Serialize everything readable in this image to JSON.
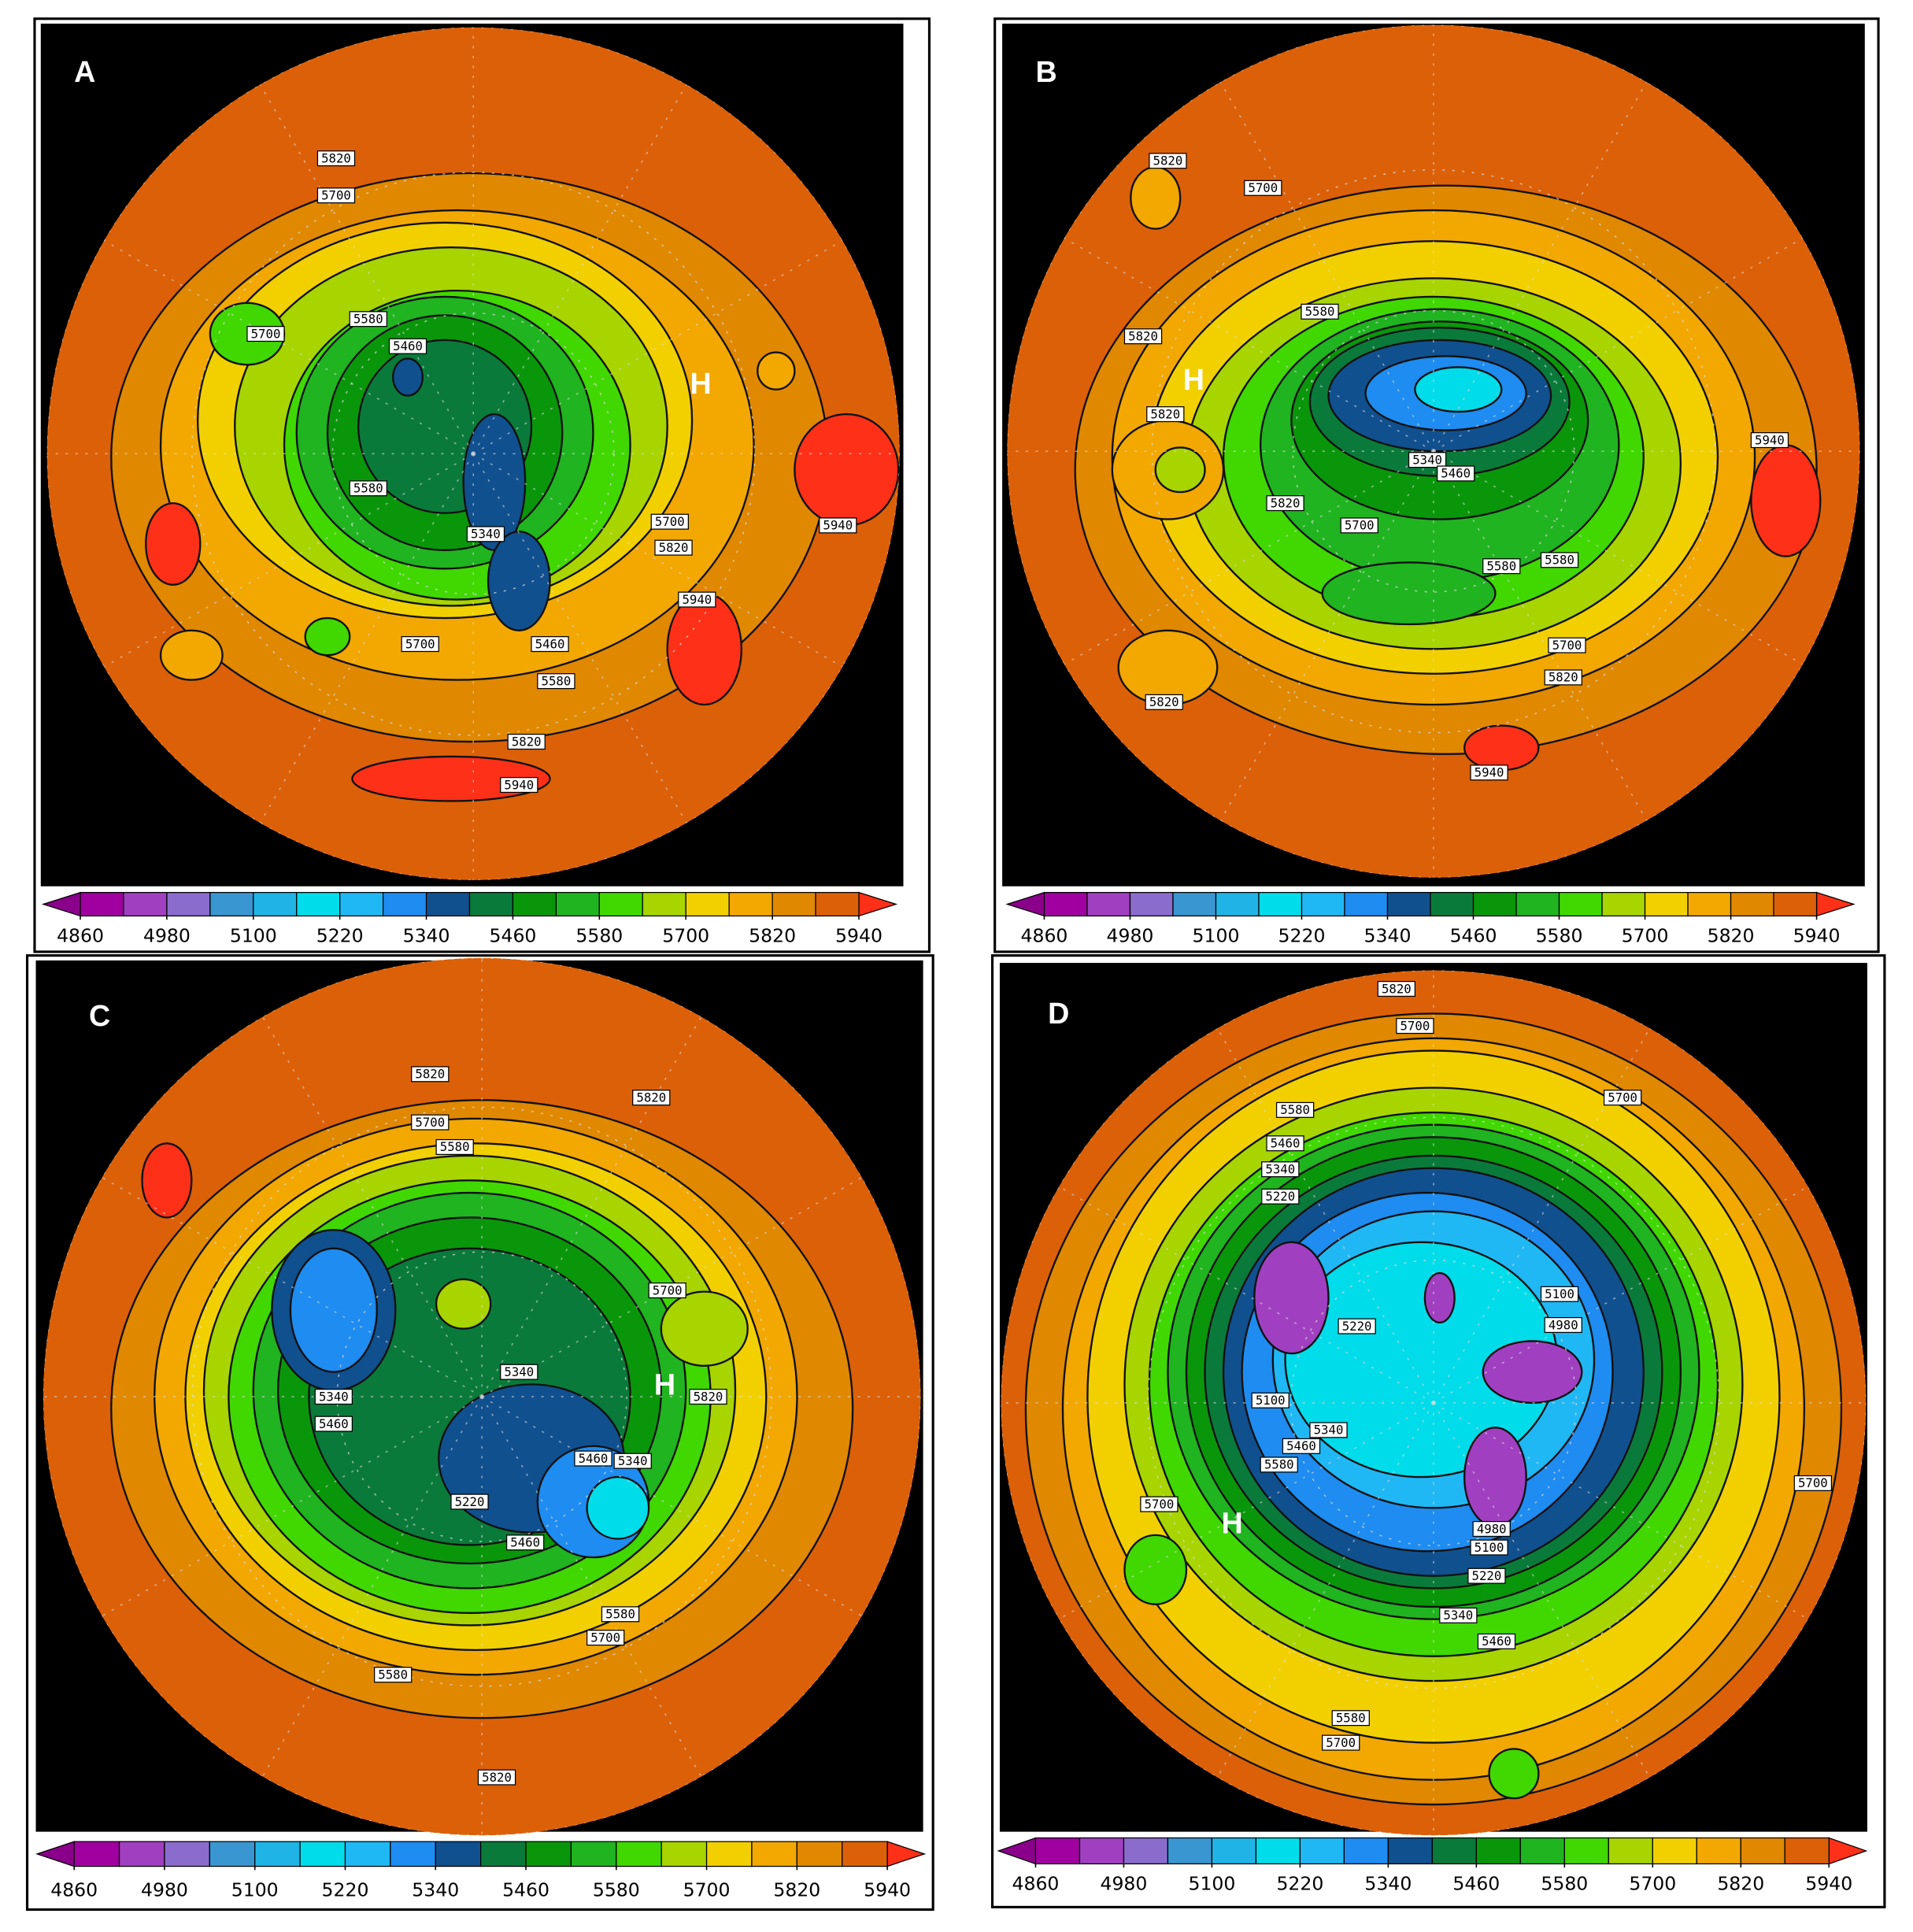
{
  "panels": [
    {
      "label": "A",
      "high": "H",
      "contour_labels": [
        5820,
        5700,
        5700,
        5580,
        5460,
        5580,
        5340,
        5700,
        5820,
        5940,
        5940,
        5700,
        5460,
        5580,
        5820,
        5940
      ]
    },
    {
      "label": "B",
      "high": "H",
      "contour_labels": [
        5820,
        5700,
        5820,
        5820,
        5580,
        5340,
        5460,
        5820,
        5700,
        5580,
        5580,
        5940,
        5700,
        5820,
        5820,
        5940
      ]
    },
    {
      "label": "C",
      "high": "H",
      "contour_labels": [
        5820,
        5820,
        5700,
        5580,
        5700,
        5820,
        5340,
        5340,
        5460,
        5460,
        5340,
        5220,
        5460,
        5580,
        5700,
        5580,
        5820
      ]
    },
    {
      "label": "D",
      "high": "H",
      "contour_labels": [
        5820,
        5700,
        5700,
        5580,
        5460,
        5340,
        5220,
        5100,
        5220,
        4980,
        5100,
        5340,
        5460,
        5580,
        5700,
        5700,
        4980,
        5100,
        5220,
        5340,
        5460,
        5580,
        5700
      ]
    }
  ],
  "colorbar": {
    "ticks": [
      4860,
      4980,
      5100,
      5220,
      5340,
      5460,
      5580,
      5700,
      5820,
      5940
    ],
    "colors": [
      "#a000a0",
      "#a040c0",
      "#8a6ccc",
      "#3a96d0",
      "#20b4e6",
      "#00dcea",
      "#20b8f4",
      "#1e8cf0",
      "#10508e",
      "#0a7a3a",
      "#0a960a",
      "#20b420",
      "#40d800",
      "#a8d400",
      "#f2d000",
      "#f2a800",
      "#e08800",
      "#dc6008"
    ],
    "low_color": "#8b008b",
    "high_color": "#ff3018"
  }
}
